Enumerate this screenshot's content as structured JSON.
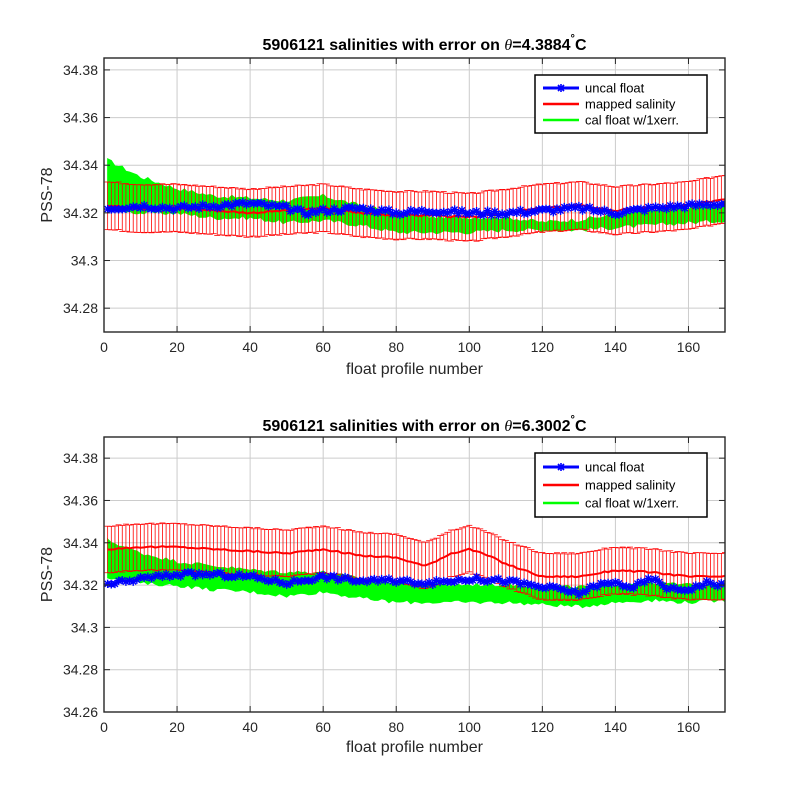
{
  "colors": {
    "uncal": "#0000ff",
    "mapped": "#ff0000",
    "cal": "#00ff00",
    "grid": "#cccccc",
    "axis": "#262626"
  },
  "chart_data": [
    {
      "type": "line",
      "title_prefix": "5906121 salinities with error on ",
      "title_theta": "θ",
      "title_suffix": "=4.3884",
      "title_deg": "°",
      "title_unit": "C",
      "xlabel": "float profile number",
      "ylabel": "PSS-78",
      "xlim": [
        0,
        170
      ],
      "ylim": [
        34.27,
        34.385
      ],
      "xticks": [
        0,
        20,
        40,
        60,
        80,
        100,
        120,
        140,
        160
      ],
      "xtick_labels": [
        "0",
        "20",
        "40",
        "60",
        "80",
        "100",
        "120",
        "140",
        "160"
      ],
      "yticks": [
        34.28,
        34.3,
        34.32,
        34.34,
        34.36,
        34.38
      ],
      "ytick_labels": [
        "34.28",
        "34.3",
        "34.32",
        "34.34",
        "34.36",
        "34.38"
      ],
      "grid": true,
      "legend_position": "top-right",
      "series": [
        {
          "name": "uncal float",
          "x": [
            1,
            10,
            20,
            30,
            40,
            50,
            55,
            60,
            70,
            80,
            90,
            100,
            110,
            120,
            130,
            140,
            150,
            160,
            170
          ],
          "values": [
            34.322,
            34.323,
            34.322,
            34.323,
            34.324,
            34.322,
            34.32,
            34.321,
            34.322,
            34.32,
            34.321,
            34.32,
            34.32,
            34.321,
            34.322,
            34.32,
            34.322,
            34.323,
            34.324
          ]
        },
        {
          "name": "mapped salinity",
          "x": [
            1,
            10,
            20,
            30,
            40,
            50,
            60,
            70,
            80,
            90,
            100,
            110,
            120,
            130,
            140,
            150,
            160,
            170
          ],
          "values": [
            34.323,
            34.322,
            34.322,
            34.321,
            34.32,
            34.321,
            34.322,
            34.32,
            34.319,
            34.319,
            34.318,
            34.32,
            34.322,
            34.323,
            34.321,
            34.322,
            34.323,
            34.326
          ],
          "error": 0.01
        },
        {
          "name": "cal float w/1xerr.",
          "x": [
            1,
            10,
            20,
            30,
            40,
            50,
            60,
            70,
            80,
            90,
            100,
            110,
            120,
            130,
            140,
            150,
            160,
            170
          ],
          "upper": [
            34.342,
            34.335,
            34.33,
            34.327,
            34.326,
            34.325,
            34.327,
            34.323,
            34.32,
            34.318,
            34.318,
            34.318,
            34.316,
            34.317,
            34.319,
            34.321,
            34.322,
            34.324
          ],
          "lower": [
            34.322,
            34.32,
            34.32,
            34.318,
            34.318,
            34.316,
            34.317,
            34.315,
            34.312,
            34.312,
            34.312,
            34.313,
            34.313,
            34.313,
            34.314,
            34.315,
            34.316,
            34.317
          ]
        }
      ]
    },
    {
      "type": "line",
      "title_prefix": "5906121 salinities with error on ",
      "title_theta": "θ",
      "title_suffix": "=6.3002",
      "title_deg": "°",
      "title_unit": "C",
      "xlabel": "float profile number",
      "ylabel": "PSS-78",
      "xlim": [
        0,
        170
      ],
      "ylim": [
        34.26,
        34.39
      ],
      "xticks": [
        0,
        20,
        40,
        60,
        80,
        100,
        120,
        140,
        160
      ],
      "xtick_labels": [
        "0",
        "20",
        "40",
        "60",
        "80",
        "100",
        "120",
        "140",
        "160"
      ],
      "yticks": [
        34.26,
        34.28,
        34.3,
        34.32,
        34.34,
        34.36,
        34.38
      ],
      "ytick_labels": [
        "34.26",
        "34.28",
        "34.3",
        "34.32",
        "34.34",
        "34.36",
        "34.38"
      ],
      "grid": true,
      "legend_position": "top-right",
      "series": [
        {
          "name": "uncal float",
          "x": [
            1,
            10,
            20,
            30,
            40,
            50,
            60,
            70,
            80,
            90,
            100,
            110,
            120,
            125,
            130,
            135,
            140,
            145,
            150,
            155,
            160,
            165,
            170
          ],
          "values": [
            34.32,
            34.323,
            34.325,
            34.325,
            34.324,
            34.321,
            34.324,
            34.322,
            34.322,
            34.321,
            34.323,
            34.322,
            34.319,
            34.318,
            34.316,
            34.32,
            34.321,
            34.319,
            34.323,
            34.318,
            34.318,
            34.321,
            34.32
          ]
        },
        {
          "name": "mapped salinity",
          "x": [
            1,
            10,
            20,
            30,
            40,
            50,
            60,
            70,
            80,
            88,
            95,
            100,
            105,
            110,
            120,
            130,
            140,
            150,
            160,
            170
          ],
          "values": [
            34.337,
            34.338,
            34.338,
            34.337,
            34.336,
            34.335,
            34.337,
            34.334,
            34.333,
            34.329,
            34.335,
            34.337,
            34.334,
            34.33,
            34.324,
            34.324,
            34.327,
            34.326,
            34.324,
            34.324
          ],
          "error": 0.011
        },
        {
          "name": "cal float w/1xerr.",
          "x": [
            1,
            10,
            20,
            30,
            40,
            50,
            60,
            70,
            80,
            90,
            100,
            110,
            120,
            130,
            140,
            150,
            160,
            170
          ],
          "upper": [
            34.341,
            34.335,
            34.331,
            34.329,
            34.327,
            34.326,
            34.326,
            34.323,
            34.321,
            34.32,
            34.32,
            34.32,
            34.319,
            34.319,
            34.32,
            34.321,
            34.32,
            34.321
          ],
          "lower": [
            34.324,
            34.321,
            34.32,
            34.318,
            34.317,
            34.315,
            34.317,
            34.314,
            34.312,
            34.312,
            34.312,
            34.312,
            34.311,
            34.31,
            34.312,
            34.313,
            34.312,
            34.313
          ]
        }
      ]
    }
  ]
}
